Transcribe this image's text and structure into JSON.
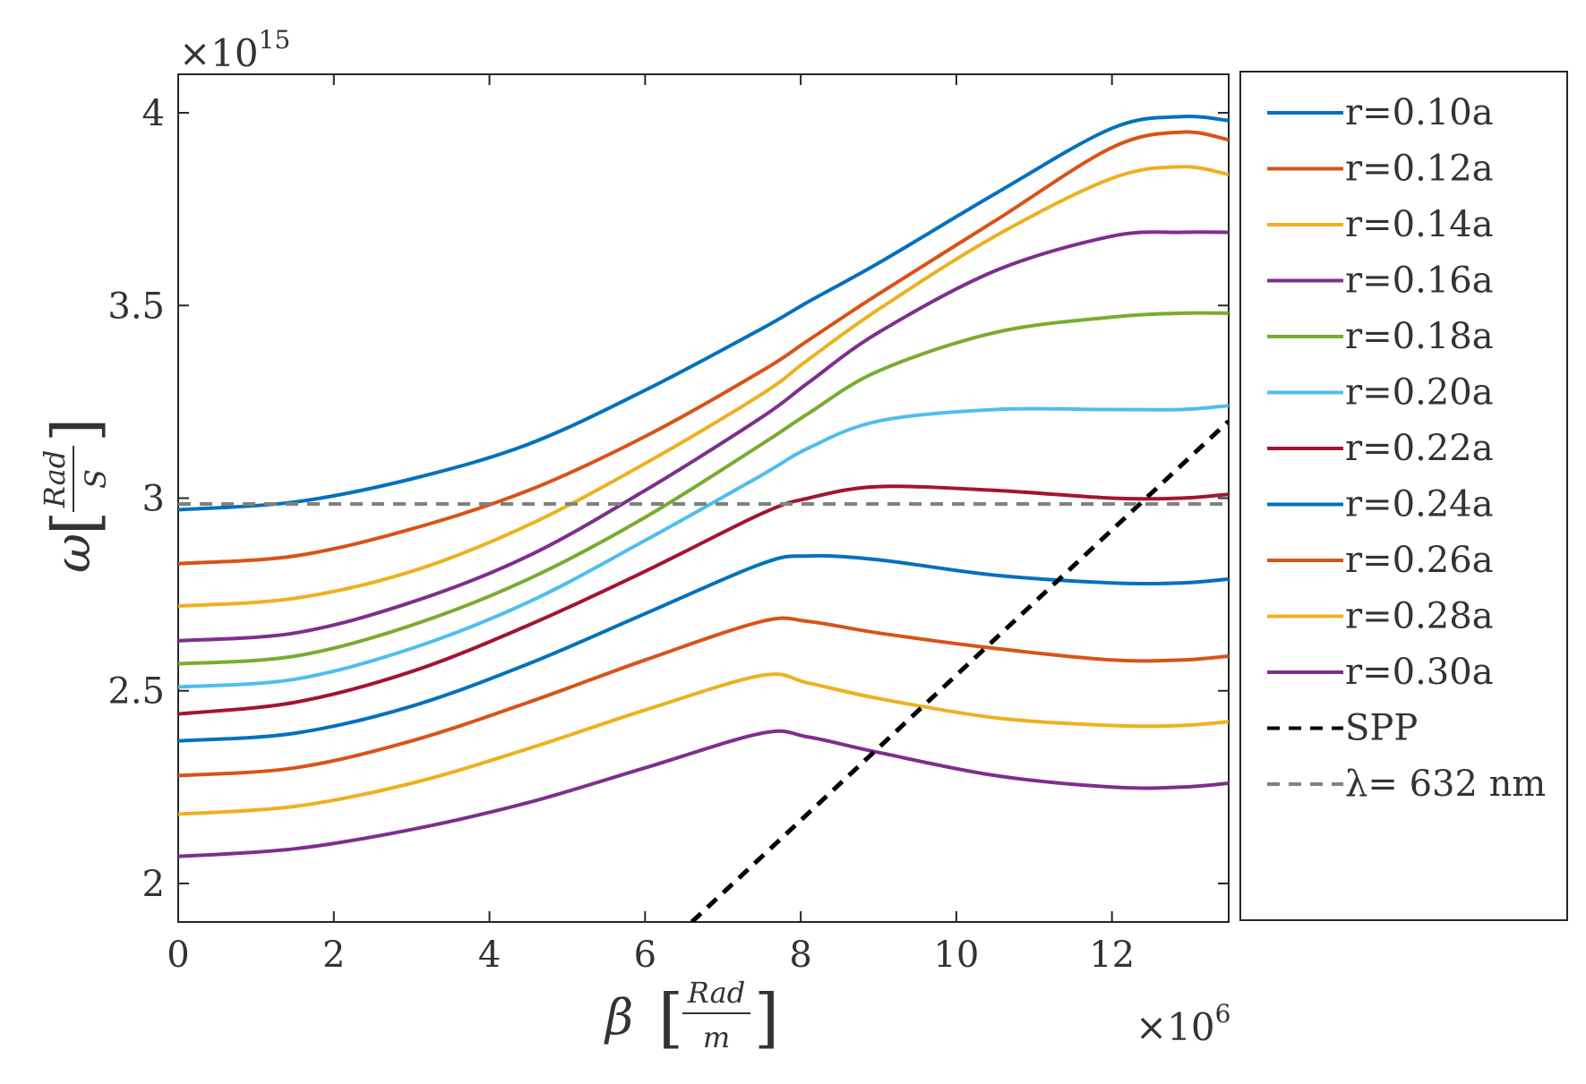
{
  "chart_data": {
    "type": "line",
    "title": "",
    "xlabel": {
      "symbol": "β",
      "numerator": "Rad",
      "denominator": "m"
    },
    "ylabel": {
      "symbol": "ω",
      "numerator": "Rad",
      "denominator": "S"
    },
    "x_multiplier": {
      "base": "×10",
      "exponent": "6"
    },
    "y_multiplier": {
      "base": "×10",
      "exponent": "15"
    },
    "xlim": [
      0,
      13.5
    ],
    "ylim": [
      1.9,
      4.1
    ],
    "xticks": [
      0,
      2,
      4,
      6,
      8,
      10,
      12
    ],
    "xtick_labels": [
      "0",
      "2",
      "4",
      "6",
      "8",
      "10",
      "12"
    ],
    "yticks": [
      2,
      2.5,
      3,
      3.5,
      4
    ],
    "ytick_labels": [
      "2",
      "2.5",
      "3",
      "3.5",
      "4"
    ],
    "grid": false,
    "legend_position": "outside-right",
    "x": [
      0,
      1.5,
      3,
      4.5,
      6,
      7.5,
      8.1,
      9,
      10.5,
      12,
      12.9,
      13.5
    ],
    "series": [
      {
        "name": "r=0.10a",
        "color": "#0072BD",
        "dash": "solid",
        "values": [
          2.97,
          2.99,
          3.05,
          3.14,
          3.28,
          3.44,
          3.51,
          3.61,
          3.79,
          3.96,
          3.99,
          3.98
        ]
      },
      {
        "name": "r=0.12a",
        "color": "#D95319",
        "dash": "solid",
        "values": [
          2.83,
          2.85,
          2.92,
          3.02,
          3.16,
          3.33,
          3.41,
          3.53,
          3.72,
          3.91,
          3.95,
          3.93
        ]
      },
      {
        "name": "r=0.14a",
        "color": "#EDB120",
        "dash": "solid",
        "values": [
          2.72,
          2.74,
          2.81,
          2.93,
          3.09,
          3.27,
          3.36,
          3.49,
          3.68,
          3.83,
          3.86,
          3.84
        ]
      },
      {
        "name": "r=0.16a",
        "color": "#7E2F8E",
        "dash": "solid",
        "values": [
          2.63,
          2.65,
          2.73,
          2.85,
          3.02,
          3.21,
          3.3,
          3.43,
          3.59,
          3.68,
          3.69,
          3.69
        ]
      },
      {
        "name": "r=0.18a",
        "color": "#77AC30",
        "dash": "solid",
        "values": [
          2.57,
          2.59,
          2.67,
          2.79,
          2.95,
          3.14,
          3.22,
          3.33,
          3.43,
          3.47,
          3.48,
          3.48
        ]
      },
      {
        "name": "r=0.20a",
        "color": "#4DBEEE",
        "dash": "solid",
        "values": [
          2.51,
          2.53,
          2.61,
          2.73,
          2.89,
          3.06,
          3.13,
          3.2,
          3.23,
          3.23,
          3.23,
          3.24
        ]
      },
      {
        "name": "r=0.22a",
        "color": "#A2142F",
        "dash": "solid",
        "values": [
          2.44,
          2.47,
          2.55,
          2.67,
          2.81,
          2.96,
          3.0,
          3.03,
          3.02,
          3.0,
          3.0,
          3.01
        ]
      },
      {
        "name": "r=0.24a",
        "color": "#0072BD",
        "dash": "solid",
        "values": [
          2.37,
          2.39,
          2.46,
          2.57,
          2.7,
          2.83,
          2.85,
          2.84,
          2.8,
          2.78,
          2.78,
          2.79
        ]
      },
      {
        "name": "r=0.26a",
        "color": "#D95319",
        "dash": "solid",
        "values": [
          2.28,
          2.3,
          2.37,
          2.47,
          2.58,
          2.68,
          2.68,
          2.65,
          2.61,
          2.58,
          2.58,
          2.59
        ]
      },
      {
        "name": "r=0.28a",
        "color": "#EDB120",
        "dash": "solid",
        "values": [
          2.18,
          2.2,
          2.26,
          2.35,
          2.45,
          2.54,
          2.52,
          2.48,
          2.43,
          2.41,
          2.41,
          2.42
        ]
      },
      {
        "name": "r=0.30a",
        "color": "#7E2F8E",
        "dash": "solid",
        "values": [
          2.07,
          2.09,
          2.14,
          2.21,
          2.3,
          2.39,
          2.38,
          2.34,
          2.28,
          2.25,
          2.25,
          2.26
        ]
      }
    ],
    "lines": [
      {
        "name": "SPP",
        "color": "#000000",
        "dash": "dashed",
        "x": [
          6.6,
          13.5
        ],
        "values": [
          1.9,
          3.2
        ]
      },
      {
        "name": "λ= 632 nm",
        "color": "#808080",
        "dash": "dashed",
        "x": [
          0,
          13.5
        ],
        "values": [
          2.985,
          2.985
        ]
      }
    ]
  }
}
